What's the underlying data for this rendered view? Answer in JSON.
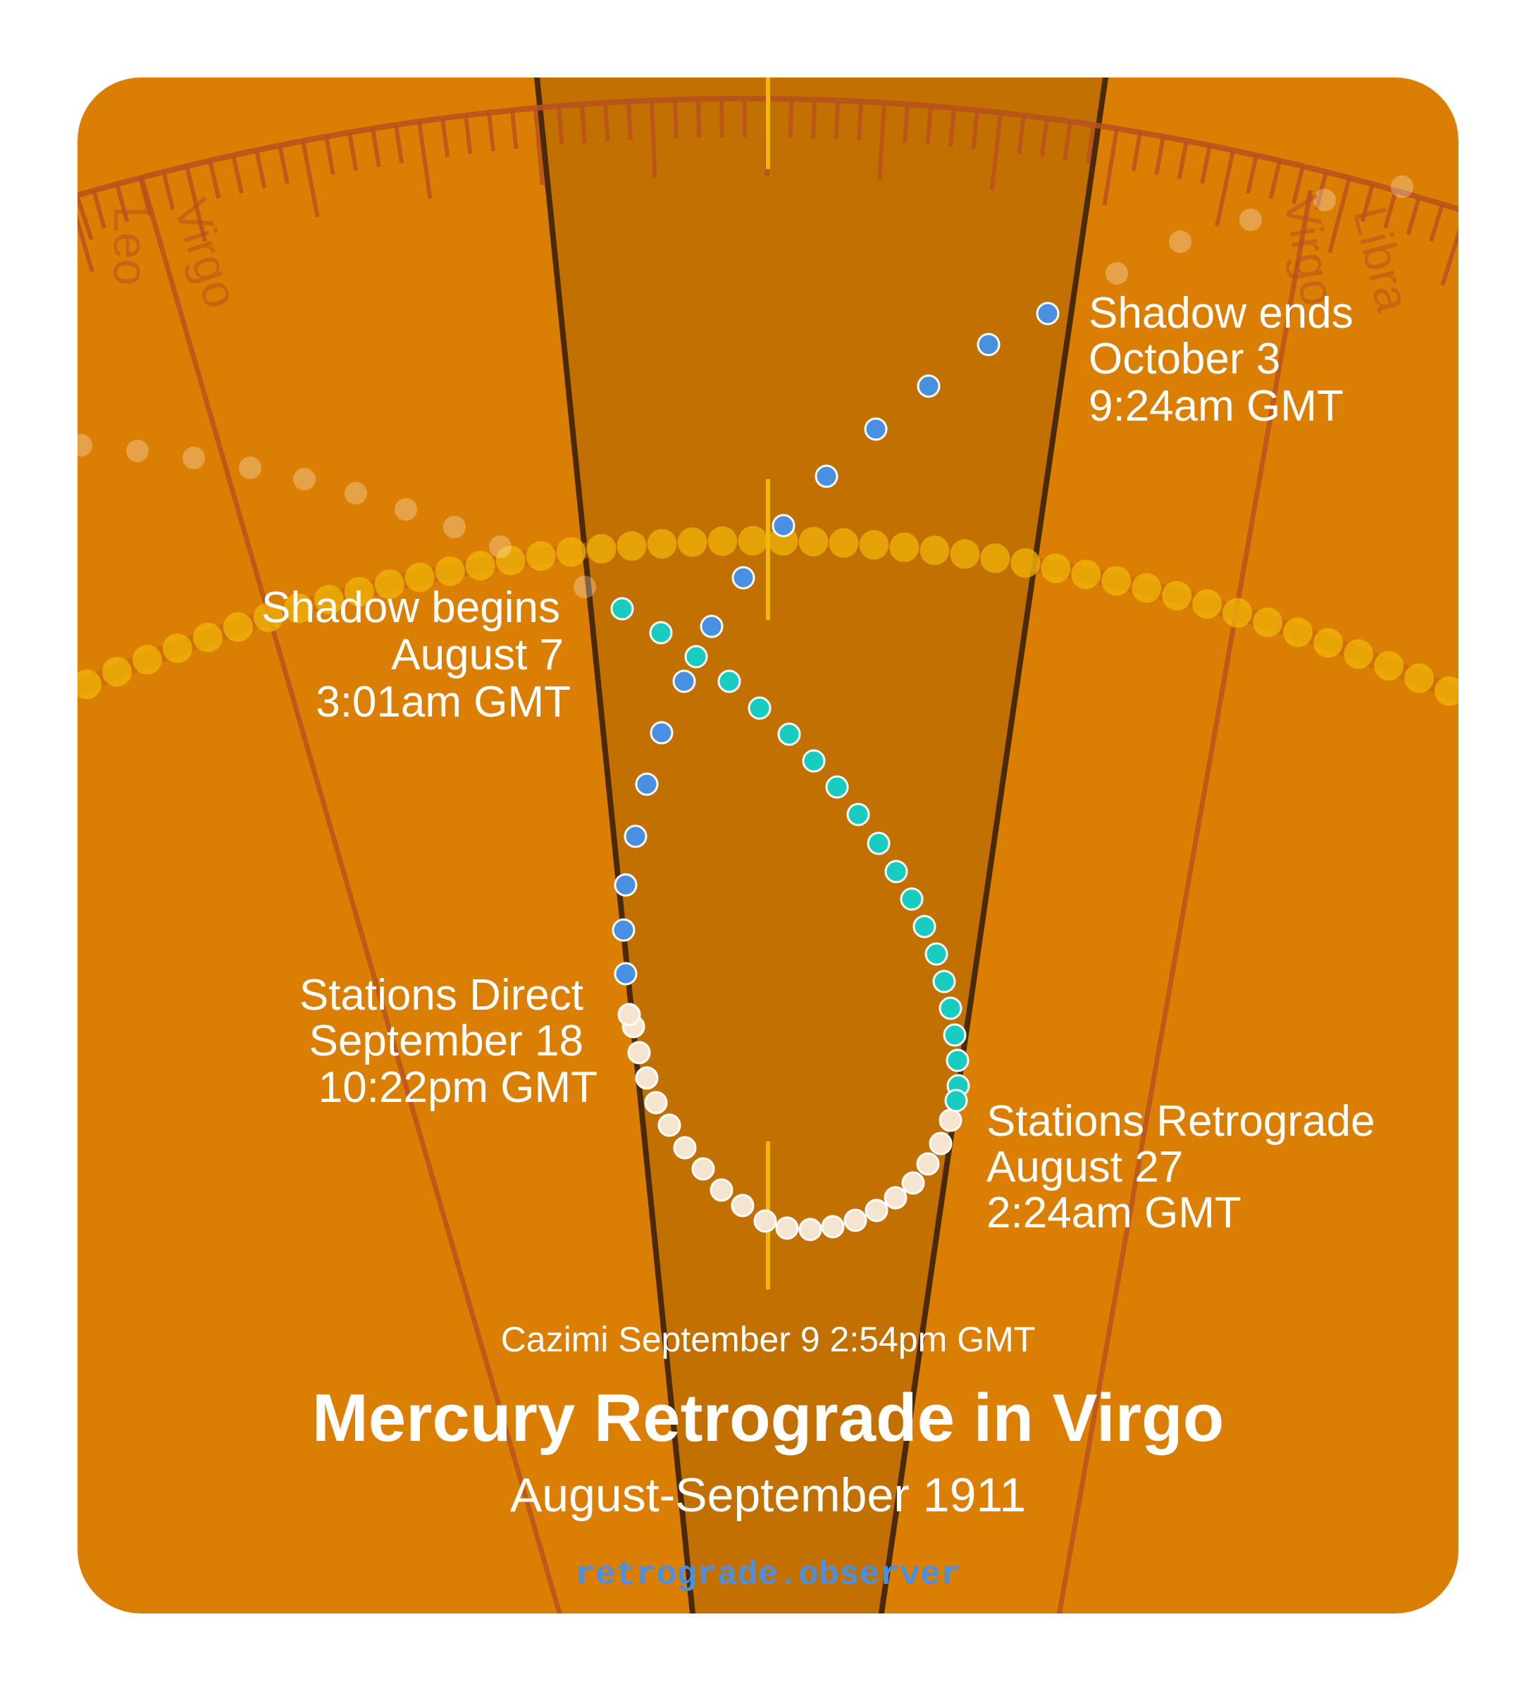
{
  "title": "Mercury Retrograde in Virgo",
  "subtitle": "August-September 1911",
  "cazimi": "Cazimi September 9 2:54pm GMT",
  "site": "retrograde.observer",
  "signs": {
    "leo": "Leo",
    "virgo_left": "Virgo",
    "virgo_right": "Virgo",
    "libra": "Libra"
  },
  "events": {
    "shadow_begins": {
      "line1": "Shadow begins",
      "line2": "August 7",
      "line3": "3:01am GMT"
    },
    "stations_retrograde": {
      "line1": "Stations Retrograde",
      "line2": "August 27",
      "line3": "2:24am GMT"
    },
    "stations_direct": {
      "line1": "Stations Direct",
      "line2": "September 18",
      "line3": "10:22pm GMT"
    },
    "shadow_ends": {
      "line1": "Shadow ends",
      "line2": "October 3",
      "line3": "9:24am GMT"
    }
  },
  "colors": {
    "background": "#db7f04",
    "retrograde_zone": "#c27002",
    "pre_shadow_dot": "#19ccc0",
    "retrograde_dot": "#f5e4cf",
    "post_shadow_dot": "#4a90e2",
    "sun_dot": "#f2b807",
    "sign_line": "#b8501f",
    "zone_edge": "#4a2a08"
  },
  "icons": {
    "mercury": "circle-dot",
    "sun": "circle-dot"
  }
}
